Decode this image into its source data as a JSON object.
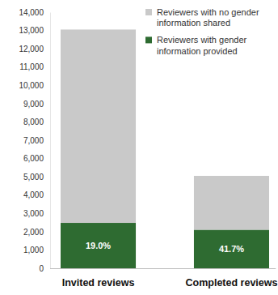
{
  "chart_data": {
    "type": "bar",
    "stacked": true,
    "legend": "upper right",
    "grid": false,
    "categories": [
      "Invited reviews",
      "Completed reviews"
    ],
    "series": [
      {
        "name": "Reviewers with gender information provided",
        "color": "#2e6b31",
        "values": [
          2480,
          2105
        ],
        "share_labels": [
          "19.0%",
          "41.7%"
        ]
      },
      {
        "name": "Reviewers with no gender information shared",
        "color": "#c9c9c9",
        "values": [
          10570,
          2945
        ]
      }
    ],
    "ylim": [
      0,
      14000
    ],
    "yticks": [
      0,
      {
        "value": 1000,
        "label": "1,000"
      },
      {
        "value": 2000,
        "label": "2,000"
      },
      {
        "value": 3000,
        "label": "3,000"
      },
      {
        "value": 4000,
        "label": "4,000"
      },
      {
        "value": 5000,
        "label": "5,000"
      },
      {
        "value": 6000,
        "label": "6,000"
      },
      {
        "value": 7000,
        "label": "7,000"
      },
      {
        "value": 8000,
        "label": "8,000"
      },
      {
        "value": 9000,
        "label": "9,000"
      },
      {
        "value": 10000,
        "label": "10,000"
      },
      {
        "value": 11000,
        "label": "11,000"
      },
      {
        "value": 12000,
        "label": "12,000"
      },
      {
        "value": 13000,
        "label": "13,000"
      },
      {
        "value": 14000,
        "label": "14,000"
      }
    ]
  }
}
